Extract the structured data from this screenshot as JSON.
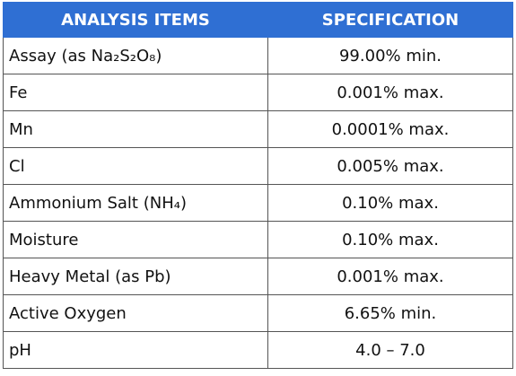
{
  "table": {
    "columns": [
      "ANALYSIS ITEMS",
      "SPECIFICATION"
    ],
    "rows": [
      [
        "Assay (as Na₂S₂O₈)",
        "99.00% min."
      ],
      [
        "Fe",
        "0.001% max."
      ],
      [
        "Mn",
        "0.0001% max."
      ],
      [
        "Cl",
        "0.005% max."
      ],
      [
        "Ammonium Salt (NH₄)",
        "0.10% max."
      ],
      [
        "Moisture",
        "0.10% max."
      ],
      [
        "Heavy Metal (as Pb)",
        "0.001% max."
      ],
      [
        "Active Oxygen",
        "6.65% min."
      ],
      [
        "pH",
        "4.0 – 7.0"
      ]
    ]
  }
}
